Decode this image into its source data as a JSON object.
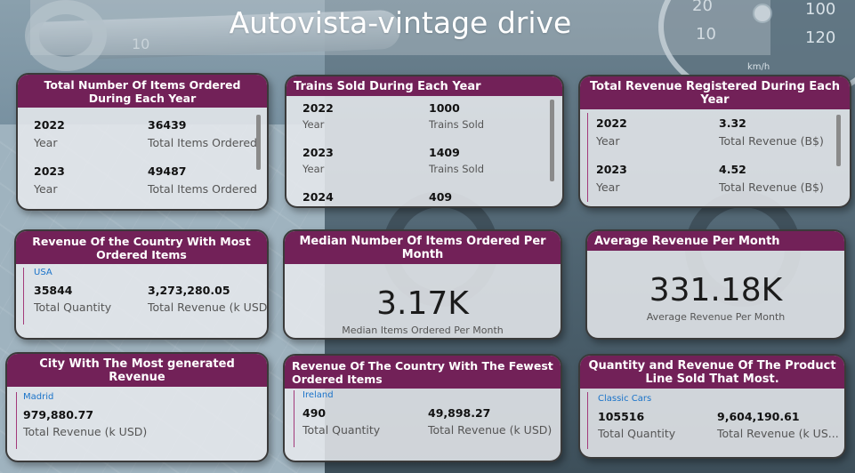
{
  "title": "Autovista-vintage drive",
  "cards": {
    "items_by_year": {
      "header": "Total Number Of Items Ordered During Each Year",
      "rows": [
        {
          "year": "2022",
          "year_label": "Year",
          "value": "36439",
          "value_label": "Total Items Ordered"
        },
        {
          "year": "2023",
          "year_label": "Year",
          "value": "49487",
          "value_label": "Total Items Ordered"
        }
      ]
    },
    "trains_by_year": {
      "header": "Trains Sold During Each Year",
      "rows": [
        {
          "year": "2022",
          "year_label": "Year",
          "value": "1000",
          "value_label": "Trains Sold"
        },
        {
          "year": "2023",
          "year_label": "Year",
          "value": "1409",
          "value_label": "Trains Sold"
        },
        {
          "year": "2024",
          "value": "409"
        }
      ]
    },
    "revenue_by_year": {
      "header": "Total Revenue Registered During Each Year",
      "rows": [
        {
          "year": "2022",
          "year_label": "Year",
          "value": "3.32",
          "value_label": "Total Revenue (B$)"
        },
        {
          "year": "2023",
          "year_label": "Year",
          "value": "4.52",
          "value_label": "Total Revenue (B$)"
        }
      ]
    },
    "top_country": {
      "header": "Revenue Of the Country With Most Ordered Items",
      "country": "USA",
      "quantity": "35844",
      "quantity_label": "Total Quantity",
      "revenue": "3,273,280.05",
      "revenue_label": "Total Revenue (k USD)"
    },
    "median_items": {
      "header": "Median Number Of Items Ordered Per Month",
      "value": "3.17K",
      "label": "Median Items Ordered Per Month"
    },
    "avg_revenue": {
      "header": "Average Revenue Per Month",
      "value": "331.18K",
      "label": "Average Revenue Per Month"
    },
    "top_city": {
      "header": "City With The Most generated Revenue",
      "city": "Madrid",
      "revenue": "979,880.77",
      "revenue_label": "Total Revenue (k USD)"
    },
    "fewest_country": {
      "header": "Revenue Of The Country With The Fewest Ordered Items",
      "country": "Ireland",
      "quantity": "490",
      "quantity_label": "Total Quantity",
      "revenue": "49,898.27",
      "revenue_label": "Total Revenue (k USD)"
    },
    "top_product_line": {
      "header": "Quantity and Revenue Of The Product Line Sold That Most.",
      "product_line": "Classic Cars",
      "quantity": "105516",
      "quantity_label": "Total Quantity",
      "revenue": "9,604,190.61",
      "revenue_label": "Total Revenue (k US..."
    }
  },
  "background": {
    "gauge_numbers": [
      "20",
      "100",
      "10",
      "120",
      "km/h"
    ],
    "wrench_mark": "10"
  },
  "colors": {
    "header_bg": "#722158",
    "card_bg": "#e8eaed",
    "link": "#1a73c9"
  }
}
